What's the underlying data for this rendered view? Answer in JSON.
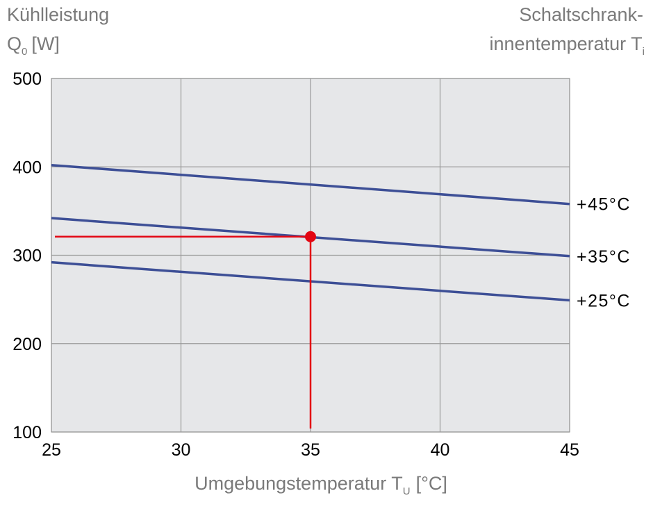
{
  "chart_data": {
    "type": "line",
    "y_title": {
      "line1": "Kühlleistung",
      "symbol": "Q",
      "subscript": "0",
      "unit": "[W]"
    },
    "right_title": {
      "line1": "Schaltschrank-",
      "line2": "innentemperatur T",
      "subscript": "i"
    },
    "x_title": {
      "text": "Umgebungstemperatur T",
      "subscript": "U",
      "unit": "[°C]"
    },
    "series": [
      {
        "name": "+45°C",
        "color": "#3d4f96",
        "x": [
          25,
          45
        ],
        "values": [
          402,
          358
        ]
      },
      {
        "name": "+35°C",
        "color": "#3d4f96",
        "x": [
          25,
          45
        ],
        "values": [
          342,
          299
        ]
      },
      {
        "name": "+25°C",
        "color": "#3d4f96",
        "x": [
          25,
          45
        ],
        "values": [
          292,
          249
        ]
      }
    ],
    "marker": {
      "x": 35,
      "y": 321,
      "color": "#e30613"
    },
    "xlim": [
      25,
      45
    ],
    "xticks": [
      25,
      30,
      35,
      40,
      45
    ],
    "ylim": [
      100,
      500
    ],
    "yticks": [
      100,
      200,
      300,
      400,
      500
    ],
    "grid": true
  }
}
